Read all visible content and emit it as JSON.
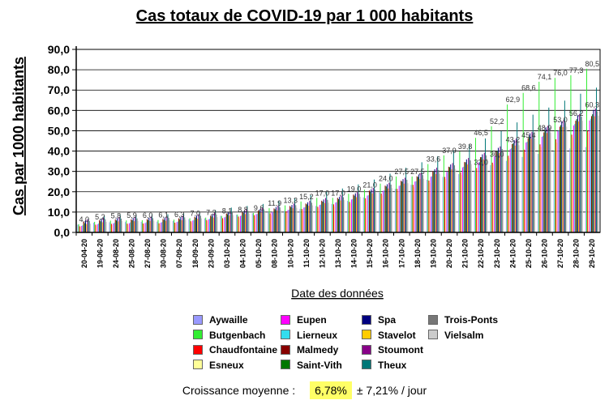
{
  "chart_data": {
    "type": "bar",
    "title": "Cas totaux de COVID-19 par 1 000 habitants",
    "xlabel": "Date des données",
    "ylabel": "Cas par 1000 habitants",
    "ylim": [
      0,
      90
    ],
    "yticks": [
      "0,0",
      "10,0",
      "20,0",
      "30,0",
      "40,0",
      "50,0",
      "60,0",
      "70,0",
      "80,0",
      "90,0"
    ],
    "grid": true,
    "legend_position": "bottom",
    "categories": [
      "20-04-20",
      "19-06-20",
      "24-08-20",
      "25-08-20",
      "27-08-20",
      "30-08-20",
      "07-09-20",
      "18-09-20",
      "23-09-20",
      "03-10-20",
      "04-10-20",
      "05-10-20",
      "08-10-20",
      "10-10-20",
      "11-10-20",
      "12-10-20",
      "13-10-20",
      "14-10-20",
      "15-10-20",
      "16-10-20",
      "17-10-20",
      "18-10-20",
      "19-10-20",
      "20-10-20",
      "21-10-20",
      "22-10-20",
      "23-10-20",
      "24-10-20",
      "25-10-20",
      "26-10-20",
      "27-10-20",
      "28-10-20",
      "29-10-20"
    ],
    "series": [
      {
        "name": "Aywaille",
        "color": "#9999ff",
        "values": [
          3.8,
          4.8,
          5.0,
          5.1,
          5.2,
          5.3,
          5.6,
          6.5,
          6.9,
          8.2,
          8.7,
          9.4,
          10.0,
          10.6,
          11.6,
          13.0,
          14.0,
          15.5,
          17.2,
          19.6,
          21.4,
          23.4,
          25.9,
          27.3,
          28.7,
          30.4,
          33.1,
          35.2,
          37.1,
          38.6,
          40.0,
          41.3,
          42.0
        ]
      },
      {
        "name": "Butgenbach",
        "color": "#33ee33",
        "values": [
          4.0,
          5.2,
          5.8,
          5.9,
          6.0,
          6.1,
          6.3,
          7.0,
          7.3,
          8.1,
          8.8,
          9.6,
          11.9,
          13.3,
          15.2,
          17.0,
          17.0,
          19.0,
          21.0,
          24.0,
          27.5,
          27.5,
          33.6,
          37.9,
          39.8,
          46.5,
          52.2,
          62.9,
          68.6,
          74.1,
          76.0,
          77.3,
          80.5
        ]
      },
      {
        "name": "Chaudfontaine",
        "color": "#ff0000",
        "values": [
          3.0,
          3.8,
          4.2,
          4.3,
          4.4,
          4.5,
          4.8,
          5.5,
          6.1,
          7.0,
          7.8,
          8.5,
          9.4,
          10.4,
          11.5,
          12.6,
          13.8,
          15.0,
          16.8,
          19.1,
          21.4,
          23.4,
          25.5,
          27.3,
          29.5,
          31.7,
          34.3,
          37.7,
          40.7,
          43.3,
          45.8,
          48.1,
          49.9
        ]
      },
      {
        "name": "Esneux",
        "color": "#ffff99",
        "values": [
          2.7,
          3.3,
          3.6,
          3.7,
          3.8,
          3.9,
          4.2,
          4.9,
          5.5,
          6.5,
          7.1,
          7.8,
          8.6,
          9.6,
          10.7,
          11.8,
          12.8,
          14.2,
          15.9,
          18.2,
          20.2,
          22.2,
          24.4,
          26.3,
          28.3,
          30.6,
          33.4,
          36.6,
          39.2,
          42.0,
          44.2,
          46.7,
          48.8
        ]
      },
      {
        "name": "Eupen",
        "color": "#ff00ff",
        "values": [
          3.2,
          4.0,
          4.4,
          4.5,
          4.6,
          4.8,
          5.1,
          5.8,
          6.4,
          7.4,
          8.1,
          9.0,
          10.0,
          11.1,
          12.2,
          13.5,
          14.7,
          16.2,
          18.1,
          20.5,
          22.9,
          25.0,
          27.4,
          29.7,
          32.0,
          34.4,
          37.4,
          41.0,
          44.2,
          47.0,
          49.8,
          52.6,
          55.0
        ]
      },
      {
        "name": "Lierneux",
        "color": "#33ddee",
        "values": [
          3.5,
          4.4,
          4.8,
          4.9,
          5.0,
          5.1,
          5.4,
          6.1,
          6.7,
          7.7,
          8.3,
          9.1,
          10.1,
          11.2,
          12.4,
          13.7,
          14.9,
          16.4,
          18.3,
          20.7,
          23.1,
          25.2,
          27.6,
          29.9,
          32.3,
          34.8,
          37.8,
          41.4,
          44.6,
          47.5,
          50.4,
          53.3,
          55.9
        ]
      },
      {
        "name": "Malmedy",
        "color": "#880000",
        "values": [
          5.2,
          6.0,
          6.3,
          6.4,
          6.5,
          6.6,
          6.9,
          7.6,
          8.2,
          9.2,
          9.9,
          10.7,
          11.8,
          13.0,
          14.2,
          15.6,
          17.0,
          18.6,
          20.6,
          23.0,
          25.4,
          27.6,
          30.1,
          32.3,
          34.6,
          37.0,
          39.9,
          43.4,
          46.4,
          49.2,
          52.0,
          54.9,
          57.2
        ]
      },
      {
        "name": "Saint-Vith",
        "color": "#007700",
        "values": [
          4.6,
          5.5,
          5.9,
          6.0,
          6.1,
          6.2,
          6.5,
          7.3,
          7.9,
          8.9,
          9.6,
          10.4,
          11.4,
          12.5,
          13.8,
          15.1,
          16.4,
          18.1,
          20.1,
          22.6,
          25.0,
          27.3,
          29.8,
          32.1,
          34.5,
          37.0,
          40.1,
          43.8,
          47.0,
          49.9,
          52.8,
          55.7,
          58.1
        ]
      },
      {
        "name": "Spa",
        "color": "#000080",
        "values": [
          5.9,
          6.6,
          7.0,
          7.1,
          7.2,
          7.3,
          7.6,
          8.3,
          8.9,
          9.9,
          10.6,
          11.4,
          12.4,
          13.5,
          14.8,
          16.2,
          17.5,
          19.2,
          21.2,
          23.7,
          26.2,
          28.5,
          31.1,
          33.4,
          35.9,
          38.4,
          41.6,
          45.4,
          48.7,
          51.7,
          54.6,
          57.6,
          60.3
        ]
      },
      {
        "name": "Stavelot",
        "color": "#ffcc00",
        "values": [
          4.1,
          5.0,
          5.4,
          5.5,
          5.6,
          5.7,
          6.0,
          6.7,
          7.3,
          8.3,
          9.0,
          9.8,
          10.8,
          11.9,
          13.1,
          14.4,
          15.7,
          17.3,
          19.2,
          21.6,
          24.0,
          26.2,
          28.7,
          31.0,
          33.4,
          35.9,
          39.0,
          42.7,
          46.0,
          48.9,
          51.8,
          54.6,
          57.1
        ]
      },
      {
        "name": "Stoumont",
        "color": "#880088",
        "values": [
          6.4,
          7.2,
          7.6,
          7.7,
          7.8,
          7.9,
          8.2,
          9.0,
          9.6,
          10.6,
          11.3,
          12.1,
          13.1,
          14.2,
          15.5,
          16.9,
          18.2,
          19.9,
          21.9,
          24.4,
          26.9,
          29.2,
          31.8,
          34.1,
          36.6,
          39.2,
          42.3,
          46.1,
          49.4,
          52.4,
          55.3,
          58.3,
          61.0
        ]
      },
      {
        "name": "Theux",
        "color": "#007777",
        "values": [
          6.9,
          8.0,
          8.6,
          8.7,
          8.8,
          8.9,
          9.3,
          10.2,
          11.0,
          12.2,
          13.0,
          14.0,
          15.3,
          16.7,
          18.3,
          20.0,
          21.6,
          23.6,
          26.0,
          28.9,
          31.8,
          34.5,
          37.5,
          40.3,
          43.2,
          46.2,
          49.8,
          54.1,
          57.9,
          61.4,
          64.8,
          68.2,
          71.2
        ]
      },
      {
        "name": "Trois-Ponts",
        "color": "#777777",
        "values": [
          5.6,
          6.4,
          6.8,
          6.9,
          7.0,
          7.1,
          7.4,
          8.2,
          8.8,
          9.8,
          10.5,
          11.3,
          12.3,
          13.4,
          14.6,
          16.0,
          17.3,
          19.0,
          21.0,
          23.5,
          25.9,
          28.2,
          30.7,
          33.0,
          35.4,
          37.9,
          41.0,
          44.8,
          48.1,
          51.1,
          54.0,
          56.9,
          59.5
        ]
      },
      {
        "name": "Vielsalm",
        "color": "#cccccc",
        "values": [
          4.3,
          5.2,
          5.6,
          5.7,
          5.8,
          5.9,
          6.2,
          6.9,
          7.5,
          8.5,
          9.2,
          10.0,
          11.0,
          12.1,
          13.3,
          14.6,
          15.9,
          17.5,
          19.4,
          21.8,
          24.2,
          26.4,
          28.9,
          31.2,
          33.6,
          36.1,
          39.2,
          42.9,
          46.2,
          49.1,
          52.0,
          54.9,
          57.4
        ]
      }
    ],
    "data_labels": [
      {
        "index": 0,
        "text": "4,0"
      },
      {
        "index": 1,
        "text": "5,2"
      },
      {
        "index": 2,
        "text": "5,8"
      },
      {
        "index": 3,
        "text": "5,9"
      },
      {
        "index": 4,
        "text": "6,0"
      },
      {
        "index": 5,
        "text": "6,1"
      },
      {
        "index": 6,
        "text": "6,3"
      },
      {
        "index": 7,
        "text": "7,0"
      },
      {
        "index": 8,
        "text": "7,3"
      },
      {
        "index": 9,
        "text": "8,1"
      },
      {
        "index": 10,
        "text": "8,8"
      },
      {
        "index": 11,
        "text": "9,6"
      },
      {
        "index": 12,
        "text": "11,9"
      },
      {
        "index": 13,
        "text": "13,3"
      },
      {
        "index": 14,
        "text": "15,2"
      },
      {
        "index": 15,
        "text": "17,0"
      },
      {
        "index": 16,
        "text": "17,0"
      },
      {
        "index": 17,
        "text": "19,0"
      },
      {
        "index": 18,
        "text": "21,0"
      },
      {
        "index": 19,
        "text": "24,0"
      },
      {
        "index": 20,
        "text": "27,5"
      },
      {
        "index": 21,
        "text": "27,5"
      },
      {
        "index": 22,
        "text": "33,6"
      },
      {
        "index": 23,
        "text": "37,9"
      },
      {
        "index": 24,
        "text": "39,8"
      },
      {
        "index": 25,
        "text": "46,5"
      },
      {
        "index": 26,
        "text": "52,2"
      },
      {
        "index": 27,
        "text": "62,9"
      },
      {
        "index": 28,
        "text": "68,6"
      },
      {
        "index": 29,
        "text": "74,1"
      },
      {
        "index": 30,
        "text": "76,0"
      },
      {
        "index": 31,
        "text": "77,3"
      },
      {
        "index": 32,
        "text": "80,5"
      },
      {
        "index": 25,
        "text": "32,0"
      },
      {
        "index": 26,
        "text": "36,0"
      },
      {
        "index": 27,
        "text": "43,2"
      },
      {
        "index": 28,
        "text": "45,4"
      },
      {
        "index": 29,
        "text": "48,9"
      },
      {
        "index": 30,
        "text": "53,0"
      },
      {
        "index": 31,
        "text": "56,2"
      },
      {
        "index": 32,
        "text": "60,3"
      }
    ]
  },
  "footer": {
    "growth_label": "Croissance moyenne :",
    "growth_value": "6,78%",
    "growth_error": "± 7,21% / jour"
  }
}
